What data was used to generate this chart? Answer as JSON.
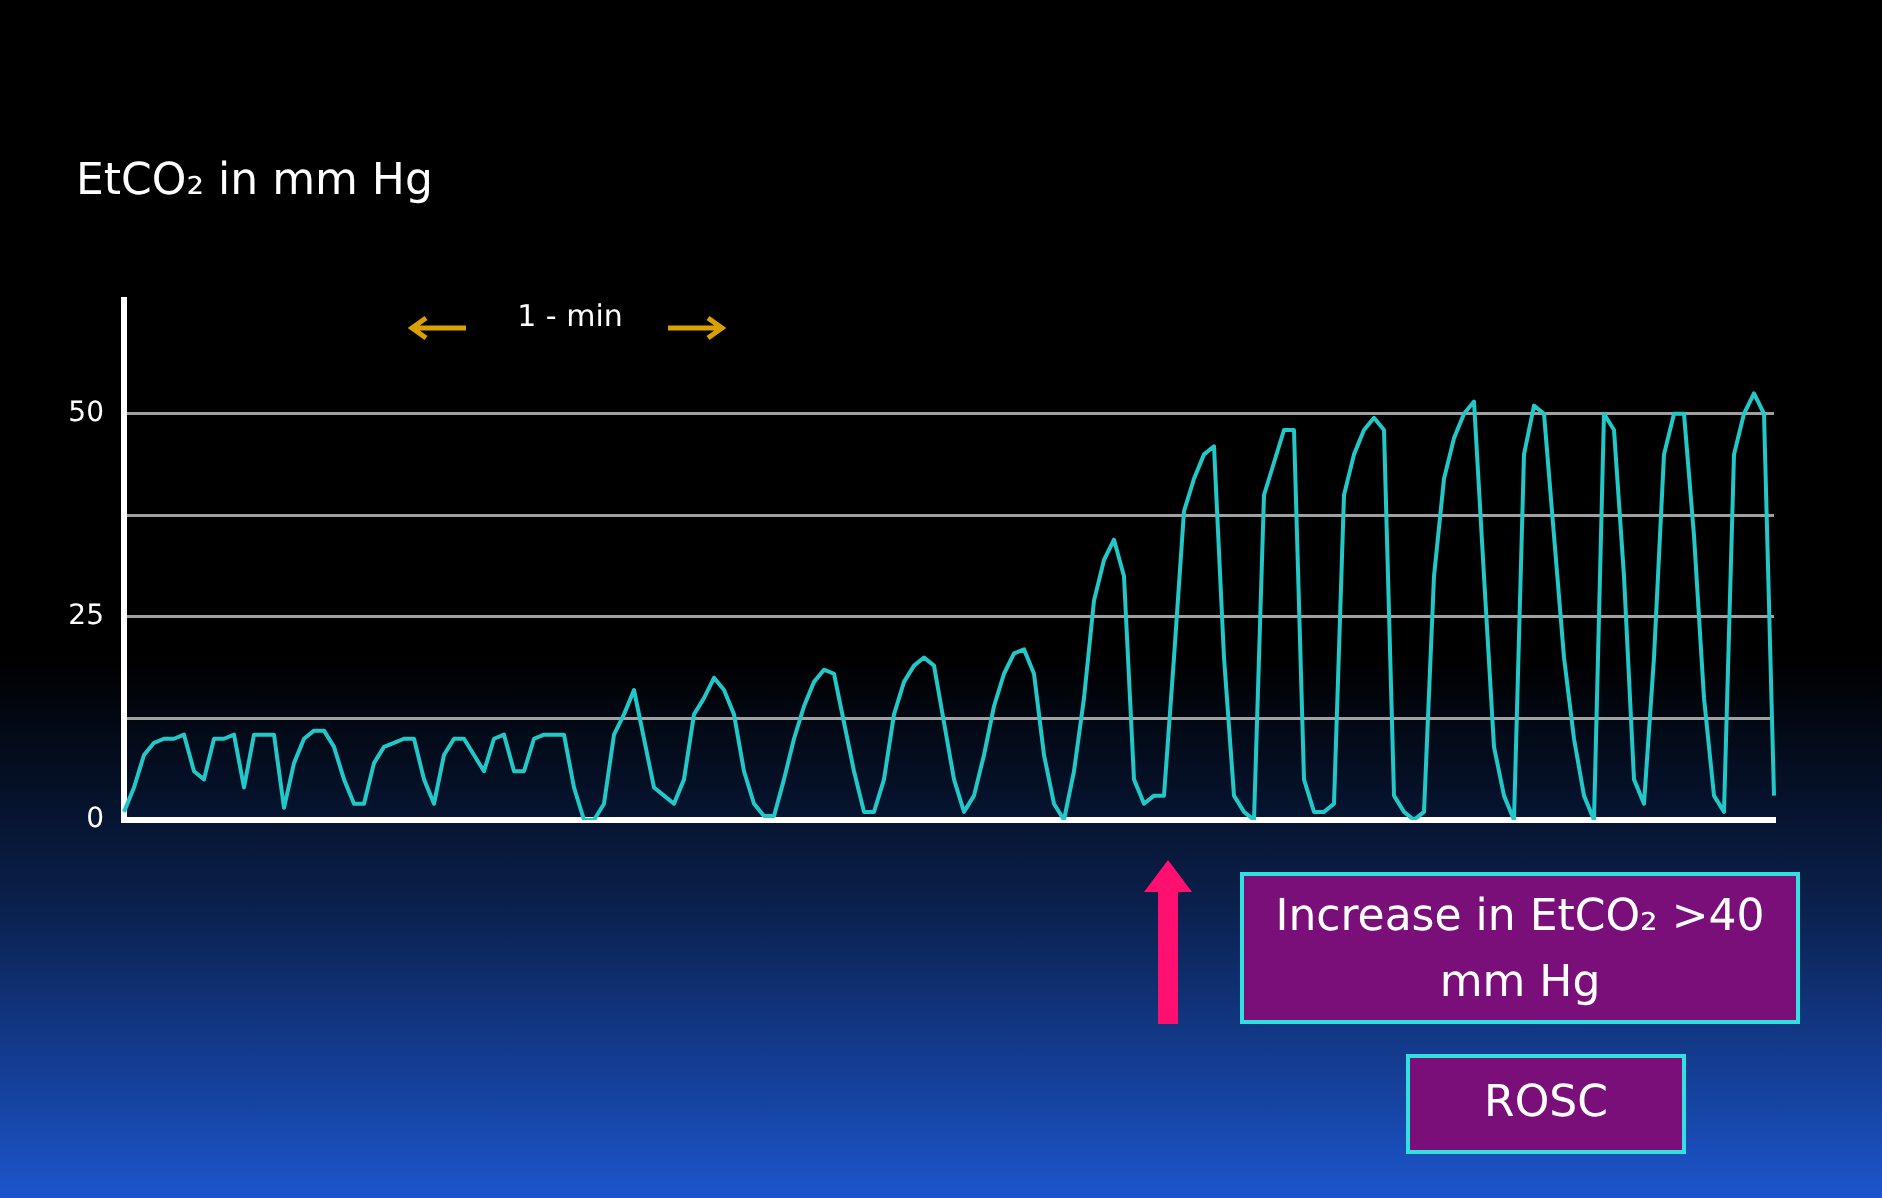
{
  "chart_data": {
    "type": "line",
    "ylabel": "EtCO₂ in mm Hg",
    "annotations": [
      "1 - min",
      "Increase in EtCO₂ >40 mm Hg",
      "ROSC"
    ],
    "categories": [
      null,
      null,
      null,
      null,
      null,
      null,
      null,
      null,
      null,
      null,
      null,
      null,
      null,
      null,
      null,
      null,
      null,
      null,
      null,
      null,
      null,
      null,
      null,
      null,
      null,
      null,
      null,
      null,
      null,
      null,
      null,
      null,
      null,
      null,
      null,
      null,
      null,
      null,
      null,
      null,
      null,
      null,
      null,
      null,
      null,
      null,
      null,
      null,
      null,
      null,
      null,
      null,
      null,
      null,
      null,
      null,
      null,
      null,
      null,
      null,
      null,
      null,
      null,
      null,
      null,
      null,
      null,
      null,
      null,
      null,
      null,
      null,
      null,
      null,
      null,
      null,
      null,
      null,
      null,
      null,
      null,
      null,
      null,
      null,
      null,
      null,
      null,
      null,
      null,
      null,
      null,
      null,
      null,
      null,
      null,
      null,
      null,
      null,
      null,
      null,
      null,
      null,
      null,
      null,
      null,
      null,
      null,
      null,
      null,
      null,
      null,
      null,
      null,
      null,
      null,
      null,
      null,
      null,
      null,
      null,
      null,
      null,
      null,
      null,
      null,
      null,
      null,
      null,
      null,
      null,
      null,
      null,
      null,
      null,
      null,
      null,
      null,
      null,
      null,
      null,
      null,
      null,
      null,
      null,
      null,
      null,
      null,
      null,
      null,
      null,
      null,
      null,
      null,
      null,
      null,
      null,
      null,
      null,
      null,
      null,
      null,
      null,
      null,
      null,
      null,
      null
    ],
    "ylim": [
      0,
      64
    ],
    "yticks": [
      0,
      {
        "value": 12.5,
        "label": null
      },
      25,
      {
        "value": 37.5,
        "label": null
      },
      50
    ],
    "grid": "y",
    "tick_labels": "y",
    "marker": "none",
    "series": [
      {
        "color": "#22c8c8",
        "values": [
          1,
          4,
          8,
          9.5,
          10,
          10,
          10.5,
          6,
          5,
          10,
          10,
          10.5,
          4,
          10.5,
          10.5,
          10.5,
          1.5,
          7,
          10,
          11,
          11,
          9,
          5,
          2,
          2,
          7,
          9,
          9.5,
          10,
          10,
          5,
          2,
          8,
          10,
          10,
          8,
          6,
          10,
          10.5,
          6,
          6,
          10,
          10.5,
          10.5,
          10.5,
          4,
          0,
          0,
          2,
          10.5,
          13,
          16,
          10,
          4,
          3,
          2,
          5,
          13,
          15,
          17.5,
          16,
          13,
          6,
          2,
          0.5,
          0.5,
          5,
          10,
          14,
          17,
          18.5,
          18,
          12,
          6,
          1,
          1,
          5,
          13,
          17,
          19,
          20,
          19,
          12,
          5,
          1,
          3,
          8,
          14,
          18,
          20.5,
          21,
          18,
          8,
          2,
          0,
          6,
          15,
          27,
          32,
          34.5,
          30,
          5,
          2,
          3,
          3,
          20,
          38,
          42,
          45,
          46,
          20,
          3,
          1,
          0,
          40,
          44,
          48,
          48,
          5,
          1,
          1,
          2,
          40,
          45,
          48,
          49.5,
          48,
          3,
          1,
          0,
          1,
          30,
          42,
          47,
          50,
          51.5,
          30,
          9,
          3,
          0,
          45,
          51,
          50,
          35,
          20,
          10,
          3,
          0,
          50,
          48,
          30,
          5,
          2,
          20,
          45,
          50,
          50,
          35,
          15,
          3,
          1,
          45,
          50,
          52.5,
          50,
          3
        ]
      }
    ]
  }
}
